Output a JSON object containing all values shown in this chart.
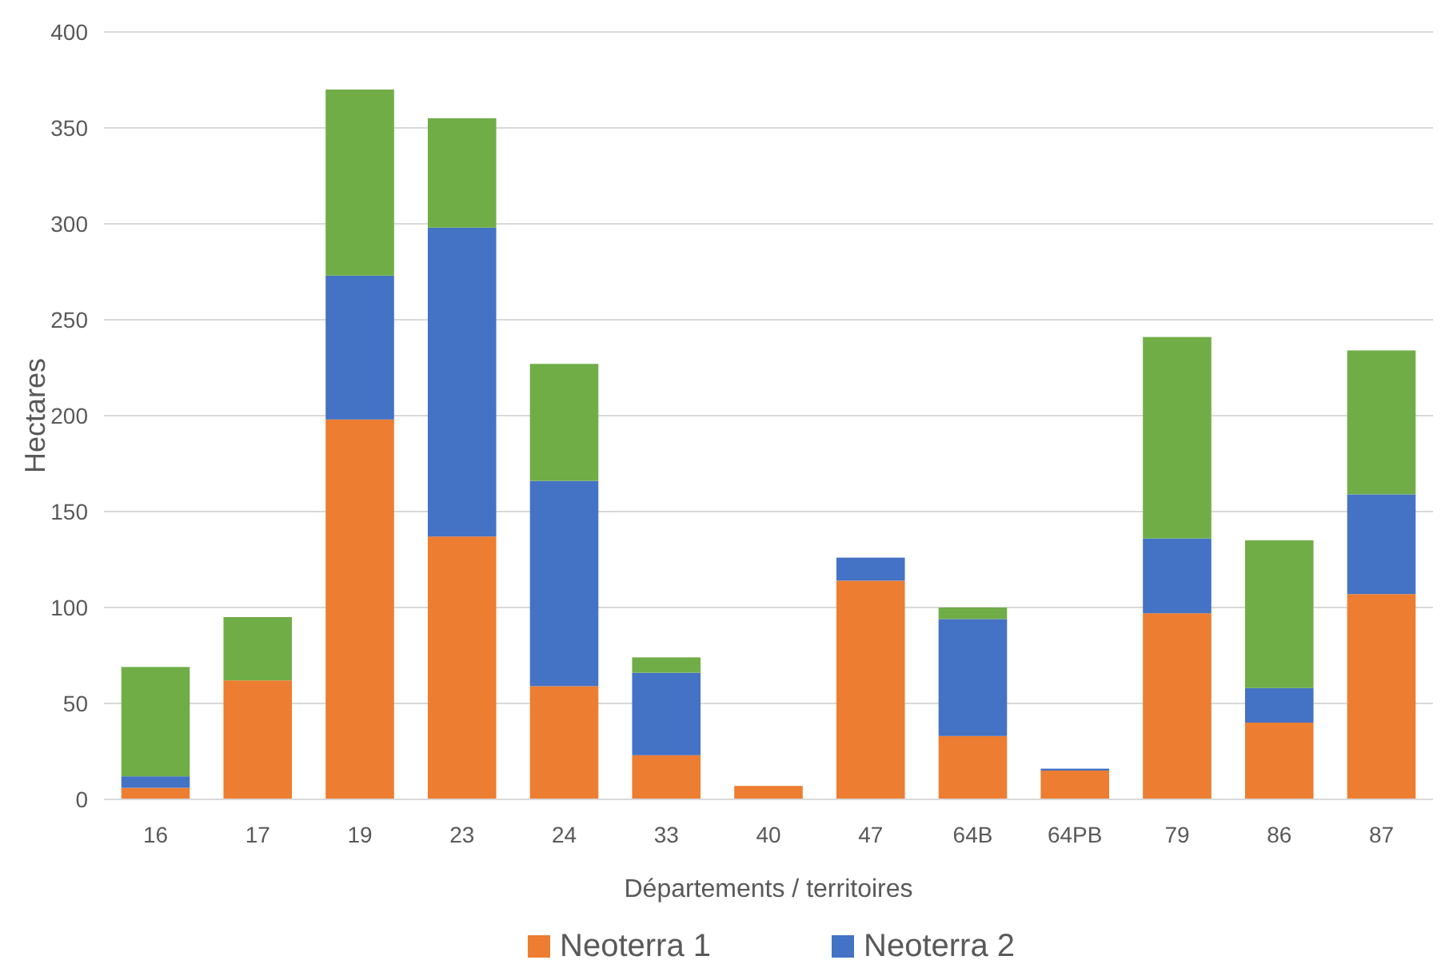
{
  "chart_data": {
    "type": "bar",
    "stacked": true,
    "xlabel": "Départements / territoires",
    "ylabel": "Hectares",
    "categories": [
      "16",
      "17",
      "19",
      "23",
      "24",
      "33",
      "40",
      "47",
      "64B",
      "64PB",
      "79",
      "86",
      "87"
    ],
    "series": [
      {
        "name": "Neoterra 1",
        "color": "#ed7d31",
        "values": [
          6,
          62,
          198,
          137,
          59,
          23,
          7,
          114,
          33,
          15,
          97,
          40,
          107
        ]
      },
      {
        "name": "Neoterra 2",
        "color": "#4472c4",
        "values": [
          6,
          null,
          75,
          161,
          107,
          43,
          null,
          12,
          61,
          1,
          39,
          18,
          52
        ]
      },
      {
        "color": "#70ad47",
        "values": [
          57,
          33,
          97,
          57,
          61,
          8,
          null,
          null,
          6,
          null,
          105,
          77,
          75
        ]
      }
    ],
    "ylim": [
      0,
      400
    ],
    "yticks": [
      0,
      50,
      100,
      150,
      200,
      250,
      300,
      350,
      400
    ],
    "grid": "y",
    "legend": "bottom"
  }
}
